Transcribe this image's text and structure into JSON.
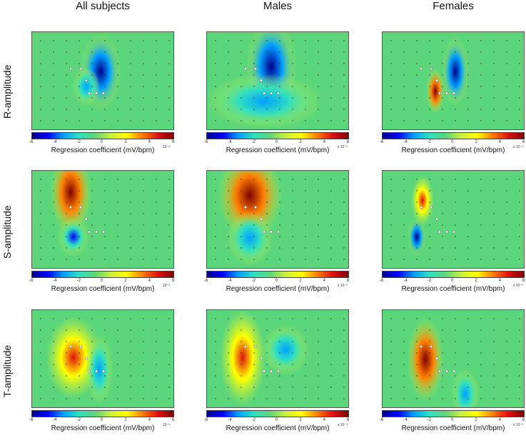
{
  "columns": [
    "All subjects",
    "Males",
    "Females"
  ],
  "rows": [
    "R-amplitude",
    "S-amplitude",
    "T-amplitude"
  ],
  "colorbar": {
    "ticks": [
      "-6",
      "-4",
      "-2",
      "0",
      "2",
      "4",
      "6"
    ],
    "label": "Regression coefficient (mV/bpm)",
    "exponent": [
      "10⁻³",
      "x 10⁻³",
      "x 10⁻³"
    ]
  },
  "chart_data": [
    {
      "type": "heatmap",
      "row": "R-amplitude",
      "column": "All subjects",
      "colorbar_range": [
        -6,
        6
      ],
      "blobs": [
        {
          "value": -6
        },
        {
          "value": -3
        }
      ]
    },
    {
      "type": "heatmap",
      "row": "R-amplitude",
      "column": "Males",
      "colorbar_range": [
        -6,
        6
      ],
      "blobs": [
        {
          "value": -6
        },
        {
          "value": -4
        }
      ]
    },
    {
      "type": "heatmap",
      "row": "R-amplitude",
      "column": "Females",
      "colorbar_range": [
        -6,
        6
      ],
      "blobs": [
        {
          "value": -6
        },
        {
          "value": 5.5
        }
      ]
    },
    {
      "type": "heatmap",
      "row": "S-amplitude",
      "column": "All subjects",
      "colorbar_range": [
        -6,
        6
      ],
      "blobs": [
        {
          "value": 5.5
        },
        {
          "value": -5
        }
      ]
    },
    {
      "type": "heatmap",
      "row": "S-amplitude",
      "column": "Males",
      "colorbar_range": [
        -6,
        6
      ],
      "blobs": [
        {
          "value": 5.8
        },
        {
          "value": -4
        }
      ]
    },
    {
      "type": "heatmap",
      "row": "S-amplitude",
      "column": "Females",
      "colorbar_range": [
        -6,
        6
      ],
      "blobs": [
        {
          "value": 5
        },
        {
          "value": -6
        }
      ]
    },
    {
      "type": "heatmap",
      "row": "T-amplitude",
      "column": "All subjects",
      "colorbar_range": [
        -6,
        6
      ],
      "blobs": [
        {
          "value": 4.5
        },
        {
          "value": -3
        }
      ]
    },
    {
      "type": "heatmap",
      "row": "T-amplitude",
      "column": "Males",
      "colorbar_range": [
        -6,
        6
      ],
      "blobs": [
        {
          "value": 5
        },
        {
          "value": -4
        }
      ]
    },
    {
      "type": "heatmap",
      "row": "T-amplitude",
      "column": "Females",
      "colorbar_range": [
        -6,
        6
      ],
      "blobs": [
        {
          "value": 6
        },
        {
          "value": -4
        }
      ]
    }
  ],
  "colors": {
    "background_value": "#5cd67a",
    "jet_stops": [
      "#00008f",
      "#0000ff",
      "#00a0ff",
      "#30e0c0",
      "#5cd67a",
      "#c8f040",
      "#ffff00",
      "#ff8000",
      "#e01010",
      "#800000"
    ]
  }
}
